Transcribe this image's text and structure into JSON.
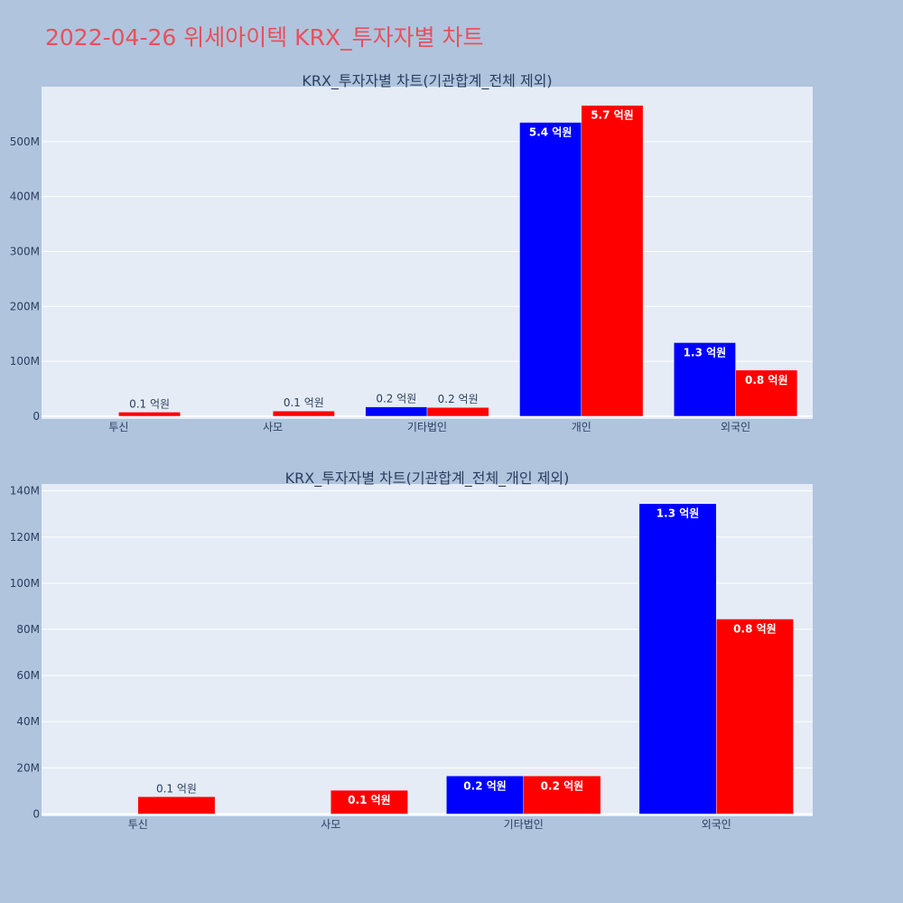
{
  "page": {
    "title": "2022-04-26 위세아이텍 KRX_투자자별 차트"
  },
  "colors": {
    "background": "#b0c4de",
    "plot_bg": "#e5ecf6",
    "grid": "#ffffff",
    "buy": "#0000ff",
    "sell": "#ff0000",
    "title": "#e8505b",
    "text": "#2a3f5f"
  },
  "chart_data": [
    {
      "type": "bar",
      "title": "KRX_투자자별 차트(기관합계_전체 제외)",
      "categories": [
        "투신",
        "사모",
        "기타법인",
        "개인",
        "외국인"
      ],
      "series": [
        {
          "color": "#0000ff",
          "values": [
            0,
            0,
            17000000,
            535000000,
            134000000
          ],
          "labels": [
            "",
            "",
            "0.2 억원",
            "5.4 억원",
            "1.3 억원"
          ]
        },
        {
          "color": "#ff0000",
          "values": [
            7500000,
            9500000,
            16000000,
            566000000,
            84000000
          ],
          "labels": [
            "0.1 억원",
            "0.1 억원",
            "0.2 억원",
            "5.7 억원",
            "0.8 억원"
          ]
        }
      ],
      "ylim": [
        -5000000,
        600000000
      ],
      "yticks": [
        0,
        100000000,
        200000000,
        300000000,
        400000000,
        500000000
      ],
      "ytick_labels": [
        "0",
        "100M",
        "200M",
        "300M",
        "400M",
        "500M"
      ],
      "grid": true
    },
    {
      "type": "bar",
      "title": "KRX_투자자별 차트(기관합계_전체_개인 제외)",
      "categories": [
        "투신",
        "사모",
        "기타법인",
        "외국인"
      ],
      "series": [
        {
          "color": "#0000ff",
          "values": [
            0,
            0,
            16500000,
            134500000
          ],
          "labels": [
            "",
            "",
            "0.2 억원",
            "1.3 억원"
          ]
        },
        {
          "color": "#ff0000",
          "values": [
            7500000,
            10300000,
            16500000,
            84500000
          ],
          "labels": [
            "0.1 억원",
            "0.1 억원",
            "0.2 억원",
            "0.8 억원"
          ]
        }
      ],
      "ylim": [
        -1000000,
        143000000
      ],
      "yticks": [
        0,
        20000000,
        40000000,
        60000000,
        80000000,
        100000000,
        120000000,
        140000000
      ],
      "ytick_labels": [
        "0",
        "20M",
        "40M",
        "60M",
        "80M",
        "100M",
        "120M",
        "140M"
      ],
      "grid": true
    }
  ]
}
